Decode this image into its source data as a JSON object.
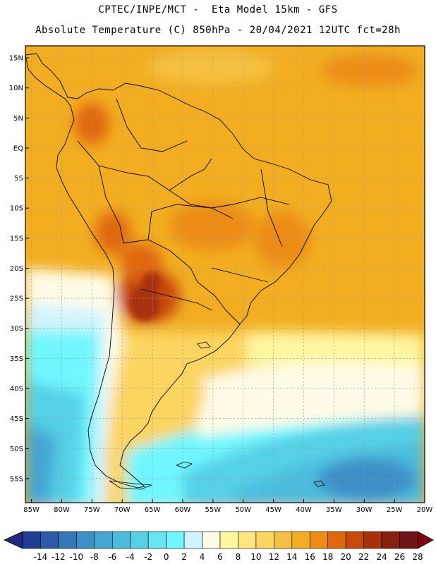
{
  "header": {
    "line1": "CPTEC/INPE/MCT -  Eta Model 15km - GFS",
    "line2": "Absolute Temperature (C) 850hPa - 20/04/2021 12UTC fct=28h"
  },
  "axes": {
    "lat_labels": [
      "15N",
      "10N",
      "5N",
      "EQ",
      "5S",
      "10S",
      "15S",
      "20S",
      "25S",
      "30S",
      "35S",
      "40S",
      "45S",
      "50S",
      "55S"
    ],
    "lon_labels": [
      "85W",
      "80W",
      "75W",
      "70W",
      "65W",
      "60W",
      "55W",
      "50W",
      "45W",
      "40W",
      "35W",
      "30W",
      "25W",
      "20W"
    ],
    "lat_range": [
      17,
      -59
    ],
    "lon_range": [
      -86,
      -20
    ]
  },
  "colorbar": {
    "labels": [
      "-14",
      "-12",
      "-10",
      "-8",
      "-6",
      "-4",
      "-2",
      "0",
      "2",
      "4",
      "6",
      "8",
      "10",
      "12",
      "14",
      "16",
      "18",
      "20",
      "22",
      "24",
      "26",
      "28"
    ],
    "colors": [
      "#1f3d94",
      "#2a5aa8",
      "#3577b8",
      "#3d8fc7",
      "#45a6d3",
      "#4cbcdc",
      "#55d0e6",
      "#66e6f0",
      "#6ff6ff",
      "#d0f4ff",
      "#fffbe6",
      "#fff6a0",
      "#ffe580",
      "#fcd460",
      "#f5c040",
      "#f2ae20",
      "#ec8c12",
      "#e0680c",
      "#c84a0a",
      "#a83208",
      "#882010",
      "#6e1412"
    ],
    "under_color": "#1f2a80",
    "over_color": "#800010"
  }
}
